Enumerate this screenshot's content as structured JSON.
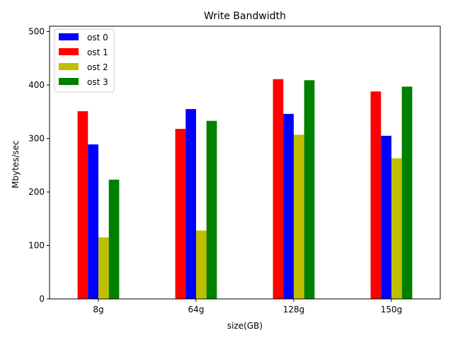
{
  "chart_data": {
    "type": "bar",
    "title": "Write Bandwidth",
    "xlabel": "size(GB)",
    "ylabel": "Mbytes/sec",
    "categories": [
      "8g",
      "64g",
      "128g",
      "150g"
    ],
    "ylim": [
      0,
      510
    ],
    "yticks": [
      0,
      100,
      200,
      300,
      400,
      500
    ],
    "grid": false,
    "legend_position": "top-left",
    "series": [
      {
        "name": "ost 0",
        "color": "#0000ff",
        "values": [
          289,
          355,
          346,
          305
        ]
      },
      {
        "name": "ost 1",
        "color": "#ff0000",
        "values": [
          351,
          318,
          411,
          388
        ]
      },
      {
        "name": "ost 2",
        "color": "#bfbf00",
        "values": [
          115,
          128,
          307,
          263
        ]
      },
      {
        "name": "ost 3",
        "color": "#008000",
        "values": [
          223,
          333,
          409,
          397
        ]
      }
    ],
    "draw_order": [
      1,
      0,
      2,
      3
    ]
  }
}
